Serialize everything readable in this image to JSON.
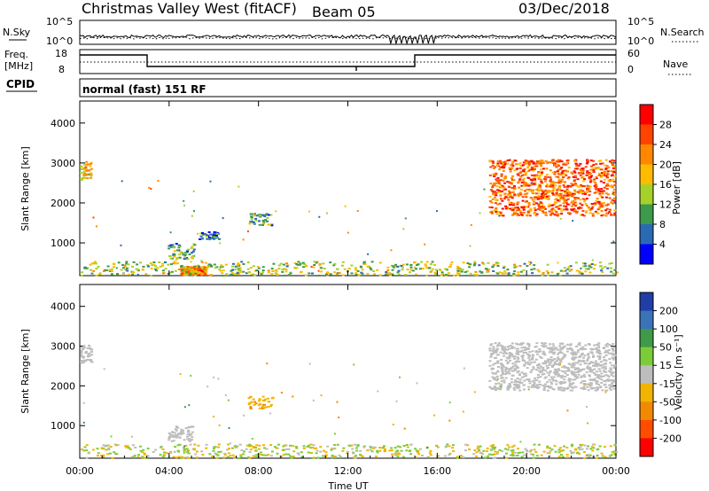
{
  "header": {
    "site": "Christmas Valley West (fitACF)",
    "beam": "Beam 05",
    "date": "03/Dec/2018"
  },
  "strips": {
    "noise": {
      "left_label": "N.Sky",
      "right_label": "N.Search",
      "left_ticks": [
        "10^5",
        "10^0"
      ],
      "right_ticks": [
        "10^5",
        "10^0"
      ]
    },
    "freq": {
      "left_label_1": "Freq.",
      "left_label_2": "[MHz]",
      "right_label": "Nave",
      "left_ticks": [
        "18",
        "8"
      ],
      "right_ticks": [
        "60",
        "0"
      ]
    },
    "cpid": {
      "left_label": "CPID",
      "mode_text": "normal (fast) 151 RF"
    }
  },
  "chart_data": [
    {
      "type": "heatmap",
      "panel": "power",
      "ylabel": "Slant Range [km]",
      "ylim": [
        180,
        4550
      ],
      "yticks": [
        1000,
        2000,
        3000,
        4000
      ],
      "xlim": [
        0,
        24
      ],
      "xticks": [
        "00:00",
        "04:00",
        "08:00",
        "12:00",
        "16:00",
        "20:00",
        "00:00"
      ],
      "colorbar": {
        "label": "Power [dB]",
        "ticks": [
          "28",
          "24",
          "20",
          "16",
          "12",
          "8",
          "4"
        ],
        "colors": [
          "#ff0000",
          "#ff4400",
          "#ff8800",
          "#ffbb00",
          "#a6d12a",
          "#3c9a4a",
          "#2a6ab5",
          "#0000ff"
        ]
      },
      "regions": [
        {
          "t0": 0.0,
          "t1": 0.5,
          "r0": 2600,
          "r1": 3050,
          "value": 18
        },
        {
          "t0": 3.9,
          "t1": 5.1,
          "r0": 600,
          "r1": 1000,
          "value": 10
        },
        {
          "t0": 4.5,
          "t1": 5.6,
          "r0": 220,
          "r1": 420,
          "value": 22
        },
        {
          "t0": 5.3,
          "t1": 6.2,
          "r0": 1100,
          "r1": 1300,
          "value": 8
        },
        {
          "t0": 7.5,
          "t1": 8.6,
          "r0": 1450,
          "r1": 1750,
          "value": 10
        },
        {
          "t0": 18.3,
          "t1": 23.9,
          "r0": 1700,
          "r1": 3100,
          "value": 24
        },
        {
          "t0": 0.0,
          "t1": 24.0,
          "r0": 200,
          "r1": 550,
          "value": 14
        }
      ]
    },
    {
      "type": "heatmap",
      "panel": "velocity",
      "ylabel": "Slant Range [km]",
      "xlabel": "Time UT",
      "ylim": [
        180,
        4550
      ],
      "yticks": [
        1000,
        2000,
        3000,
        4000
      ],
      "xlim": [
        0,
        24
      ],
      "xticks": [
        "00:00",
        "04:00",
        "08:00",
        "12:00",
        "16:00",
        "20:00",
        "00:00"
      ],
      "colorbar": {
        "label": "Velocity [m s⁻¹]",
        "ticks": [
          "200",
          "100",
          "50",
          "15",
          "-15",
          "-50",
          "-100",
          "-200"
        ],
        "colors": [
          "#1f3ea6",
          "#3a73b8",
          "#3f9a4a",
          "#7ccc3a",
          "#bdbdbd",
          "#f2b400",
          "#f18a00",
          "#ff4d00",
          "#ff0000"
        ]
      },
      "regions": [
        {
          "t0": 0.0,
          "t1": 0.5,
          "r0": 2600,
          "r1": 3050,
          "value": 0
        },
        {
          "t0": 3.9,
          "t1": 5.1,
          "r0": 600,
          "r1": 1000,
          "value": 0
        },
        {
          "t0": 7.5,
          "t1": 8.6,
          "r0": 1450,
          "r1": 1750,
          "value": -40
        },
        {
          "t0": 18.3,
          "t1": 23.9,
          "r0": 1900,
          "r1": 3100,
          "value": 0
        },
        {
          "t0": 0.0,
          "t1": 24.0,
          "r0": 200,
          "r1": 550,
          "value": 20
        }
      ]
    }
  ]
}
